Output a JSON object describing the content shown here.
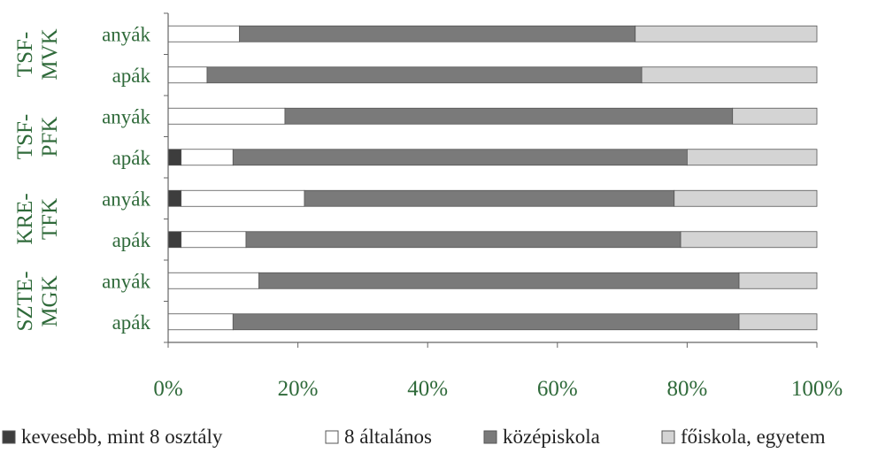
{
  "chart_data": {
    "type": "bar",
    "orientation": "horizontal",
    "stacked": true,
    "percent": true,
    "groups": [
      {
        "label": "TSF-\nMVK",
        "rows": [
          "anyák",
          "apák"
        ]
      },
      {
        "label": "TSF-\nPFK",
        "rows": [
          "anyák",
          "apák"
        ]
      },
      {
        "label": "KRE-\nTFK",
        "rows": [
          "anyák",
          "apák"
        ]
      },
      {
        "label": "SZTE-\nMGK",
        "rows": [
          "anyák",
          "apák"
        ]
      }
    ],
    "categories": [
      "anyák",
      "apák",
      "anyák",
      "apák",
      "anyák",
      "apák",
      "anyák",
      "apák"
    ],
    "series": [
      {
        "name": "kevesebb, mint 8 osztály",
        "color": "#3d3d3d",
        "values": [
          0,
          0,
          0,
          2,
          2,
          2,
          0,
          0
        ]
      },
      {
        "name": "8 általános",
        "color": "#ffffff",
        "values": [
          11,
          6,
          18,
          8,
          19,
          10,
          14,
          10
        ]
      },
      {
        "name": "középiskola",
        "color": "#7a7a7a",
        "values": [
          61,
          67,
          69,
          70,
          57,
          67,
          74,
          78
        ]
      },
      {
        "name": "főiskola, egyetem",
        "color": "#d4d4d4",
        "values": [
          28,
          27,
          13,
          20,
          22,
          21,
          12,
          12
        ]
      }
    ],
    "xlim": [
      0,
      100
    ],
    "xticks": [
      "0%",
      "20%",
      "40%",
      "60%",
      "80%",
      "100%"
    ],
    "xgrid": false,
    "legend_position": "bottom",
    "title": "",
    "xlabel": "",
    "ylabel": ""
  },
  "colors": {
    "label_green": "#2f6a3a",
    "axis": "#666666",
    "legend_text": "#222222"
  }
}
